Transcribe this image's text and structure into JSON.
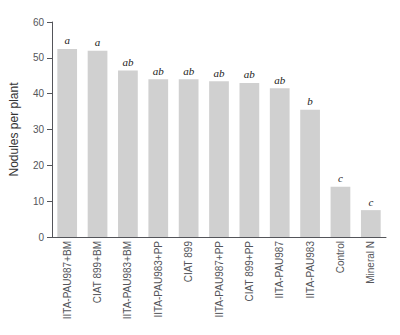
{
  "chart_data": {
    "type": "bar",
    "categories": [
      "IITA-PAU987+BM",
      "CIAT 899+BM",
      "IITA-PAU983+BM",
      "IITA-PAU983+PP",
      "CIAT 899",
      "IITA-PAU987+PP",
      "CIAT 899+PP",
      "IITA-PAU987",
      "IITA-PAU983",
      "Control",
      "Mineral N"
    ],
    "values": [
      52.5,
      52.0,
      46.5,
      44.0,
      44.0,
      43.5,
      43.0,
      41.5,
      35.5,
      14.0,
      7.5
    ],
    "annotations": [
      "a",
      "a",
      "ab",
      "ab",
      "ab",
      "ab",
      "ab",
      "ab",
      "b",
      "c",
      "c"
    ],
    "ylabel": "Nodules per plant",
    "color": "#d0d0d0",
    "ylim": [
      0,
      60
    ],
    "yticks": [
      0,
      10,
      20,
      30,
      40,
      50,
      60
    ],
    "grid": false
  }
}
